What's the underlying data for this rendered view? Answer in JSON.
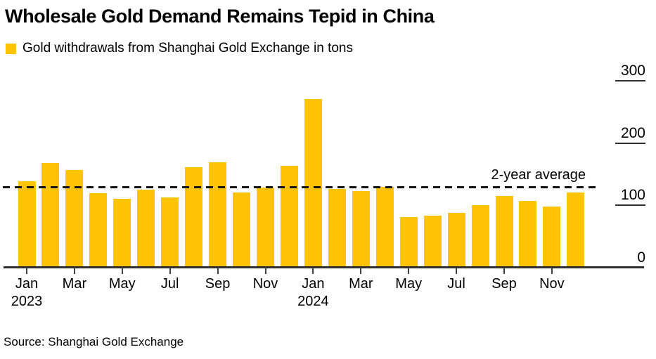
{
  "title": "Wholesale Gold Demand Remains Tepid in China",
  "legend": {
    "label": "Gold withdrawals from Shanghai Gold Exchange in tons"
  },
  "source": "Source: Shanghai Gold Exchange",
  "colors": {
    "bar": "#FFC405",
    "axis": "#2f2f2f",
    "tick": "#444444",
    "average_line": "#141414"
  },
  "chart_data": {
    "type": "bar",
    "title": "Wholesale Gold Demand Remains Tepid in China",
    "series_name": "Gold withdrawals from Shanghai Gold Exchange in tons",
    "x": [
      "Jan 2023",
      "Feb 2023",
      "Mar 2023",
      "Apr 2023",
      "May 2023",
      "Jun 2023",
      "Jul 2023",
      "Aug 2023",
      "Sep 2023",
      "Oct 2023",
      "Nov 2023",
      "Dec 2023",
      "Jan 2024",
      "Feb 2024",
      "Mar 2024",
      "Apr 2024",
      "May 2024",
      "Jun 2024",
      "Jul 2024",
      "Aug 2024",
      "Sep 2024",
      "Oct 2024",
      "Nov 2024",
      "Dec 2024"
    ],
    "values": [
      139,
      168,
      157,
      120,
      111,
      125,
      113,
      161,
      169,
      121,
      129,
      163,
      271,
      126,
      123,
      130,
      81,
      84,
      88,
      100,
      115,
      107,
      98,
      121
    ],
    "ylabel": "tons",
    "ylim": [
      0,
      300
    ],
    "yticks": [
      0,
      100,
      200,
      300
    ],
    "y_axis_side": "right",
    "grid": false,
    "xticks": [
      {
        "label": "Jan",
        "year": "2023"
      },
      {
        "label": "Mar"
      },
      {
        "label": "May"
      },
      {
        "label": "Jul"
      },
      {
        "label": "Sep"
      },
      {
        "label": "Nov"
      },
      {
        "label": "Jan",
        "year": "2024"
      },
      {
        "label": "Mar"
      },
      {
        "label": "May"
      },
      {
        "label": "Jul"
      },
      {
        "label": "Sep"
      },
      {
        "label": "Nov"
      }
    ],
    "average_line": {
      "label": "2-year average",
      "value": 130
    }
  }
}
